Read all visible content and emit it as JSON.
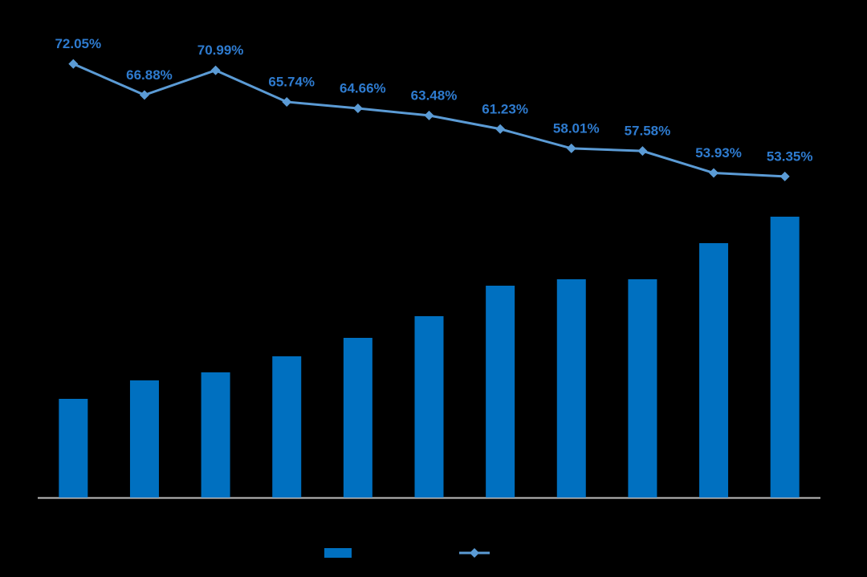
{
  "chart_data": {
    "type": "bar-line",
    "categories": [
      null,
      null,
      null,
      null,
      null,
      null,
      null,
      null,
      null,
      null,
      null
    ],
    "series": [
      {
        "type": "bar",
        "color": "#0070c0",
        "values": [
          123,
          146,
          156,
          176,
          199,
          226,
          264,
          272,
          272,
          317,
          350
        ]
      },
      {
        "type": "line",
        "axis": "y2",
        "color": "#5b9bd5",
        "values": [
          72.05,
          66.88,
          70.99,
          65.74,
          64.66,
          63.48,
          61.23,
          58.01,
          57.58,
          53.93,
          53.35
        ],
        "value_labels": [
          "72.05%",
          "66.88%",
          "70.99%",
          "65.74%",
          "64.66%",
          "63.48%",
          "61.23%",
          "58.01%",
          "57.58%",
          "53.93%",
          "53.35%"
        ],
        "label_color": "#2e7bcf"
      }
    ],
    "ylim": [
      0,
      600
    ],
    "y2lim": [
      0,
      80
    ],
    "legend": "bottom"
  }
}
